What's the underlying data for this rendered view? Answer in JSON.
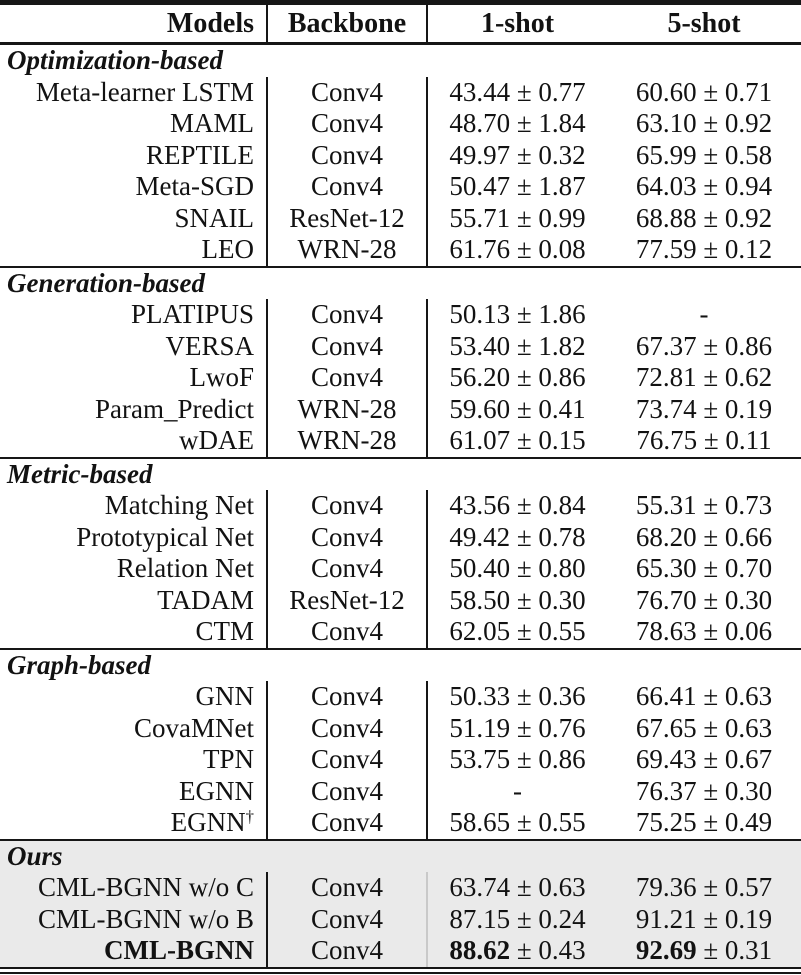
{
  "table": {
    "columns": [
      {
        "label": "Models"
      },
      {
        "label": "Backbone"
      },
      {
        "label": "1-shot"
      },
      {
        "label": "5-shot"
      }
    ],
    "sections": [
      {
        "name": "Optimization-based",
        "shaded": false,
        "rows": [
          {
            "model": "Meta-learner LSTM",
            "backbone": "Conv4",
            "one_shot": "43.44 ± 0.77",
            "five_shot": "60.60 ± 0.71"
          },
          {
            "model": "MAML",
            "backbone": "Conv4",
            "one_shot": "48.70 ± 1.84",
            "five_shot": "63.10 ± 0.92"
          },
          {
            "model": "REPTILE",
            "backbone": "Conv4",
            "one_shot": "49.97 ± 0.32",
            "five_shot": "65.99 ± 0.58"
          },
          {
            "model": "Meta-SGD",
            "backbone": "Conv4",
            "one_shot": "50.47 ± 1.87",
            "five_shot": "64.03 ± 0.94"
          },
          {
            "model": "SNAIL",
            "backbone": "ResNet-12",
            "one_shot": "55.71 ± 0.99",
            "five_shot": "68.88 ± 0.92"
          },
          {
            "model": "LEO",
            "backbone": "WRN-28",
            "one_shot": "61.76 ± 0.08",
            "five_shot": "77.59 ± 0.12"
          }
        ]
      },
      {
        "name": "Generation-based",
        "shaded": false,
        "rows": [
          {
            "model": "PLATIPUS",
            "backbone": "Conv4",
            "one_shot": "50.13 ± 1.86",
            "five_shot": "-"
          },
          {
            "model": "VERSA",
            "backbone": "Conv4",
            "one_shot": "53.40 ± 1.82",
            "five_shot": "67.37 ± 0.86"
          },
          {
            "model": "LwoF",
            "backbone": "Conv4",
            "one_shot": "56.20 ± 0.86",
            "five_shot": "72.81 ± 0.62"
          },
          {
            "model": "Param_Predict",
            "backbone": "WRN-28",
            "one_shot": "59.60 ± 0.41",
            "five_shot": "73.74 ± 0.19"
          },
          {
            "model": "wDAE",
            "backbone": "WRN-28",
            "one_shot": "61.07 ± 0.15",
            "five_shot": "76.75 ± 0.11"
          }
        ]
      },
      {
        "name": "Metric-based",
        "shaded": false,
        "rows": [
          {
            "model": "Matching Net",
            "backbone": "Conv4",
            "one_shot": "43.56 ± 0.84",
            "five_shot": "55.31 ± 0.73"
          },
          {
            "model": "Prototypical Net",
            "backbone": "Conv4",
            "one_shot": "49.42 ± 0.78",
            "five_shot": "68.20 ± 0.66"
          },
          {
            "model": "Relation Net",
            "backbone": "Conv4",
            "one_shot": "50.40 ± 0.80",
            "five_shot": "65.30 ± 0.70"
          },
          {
            "model": "TADAM",
            "backbone": "ResNet-12",
            "one_shot": "58.50 ± 0.30",
            "five_shot": "76.70 ± 0.30"
          },
          {
            "model": "CTM",
            "backbone": "Conv4",
            "one_shot": "62.05 ± 0.55",
            "five_shot": "78.63 ± 0.06"
          }
        ]
      },
      {
        "name": "Graph-based",
        "shaded": false,
        "rows": [
          {
            "model": "GNN",
            "backbone": "Conv4",
            "one_shot": "50.33 ± 0.36",
            "five_shot": "66.41 ± 0.63"
          },
          {
            "model": "CovaMNet",
            "backbone": "Conv4",
            "one_shot": "51.19 ± 0.76",
            "five_shot": "67.65 ± 0.63"
          },
          {
            "model": "TPN",
            "backbone": "Conv4",
            "one_shot": "53.75 ± 0.86",
            "five_shot": "69.43 ± 0.67"
          },
          {
            "model": "EGNN",
            "backbone": "Conv4",
            "one_shot": "-",
            "five_shot": "76.37 ± 0.30"
          },
          {
            "model": "EGNN",
            "model_sup": "†",
            "backbone": "Conv4",
            "one_shot": "58.65 ± 0.55",
            "five_shot": "75.25 ± 0.49"
          }
        ]
      },
      {
        "name": "Ours",
        "shaded": true,
        "rows": [
          {
            "model": "CML-BGNN w/o C",
            "backbone": "Conv4",
            "one_shot": "63.74 ± 0.63",
            "five_shot": "79.36 ± 0.57"
          },
          {
            "model": "CML-BGNN w/o B",
            "backbone": "Conv4",
            "one_shot": "87.15 ± 0.24",
            "five_shot": "91.21 ± 0.19"
          },
          {
            "model": "CML-BGNN",
            "bold_model": true,
            "bold_values": true,
            "backbone": "Conv4",
            "one_shot": "88.62 ± 0.43",
            "five_shot": "92.69 ± 0.31"
          }
        ]
      }
    ],
    "colors": {
      "shaded_bg": "#eaeaea",
      "rule": "#161616",
      "text": "#121212"
    }
  }
}
